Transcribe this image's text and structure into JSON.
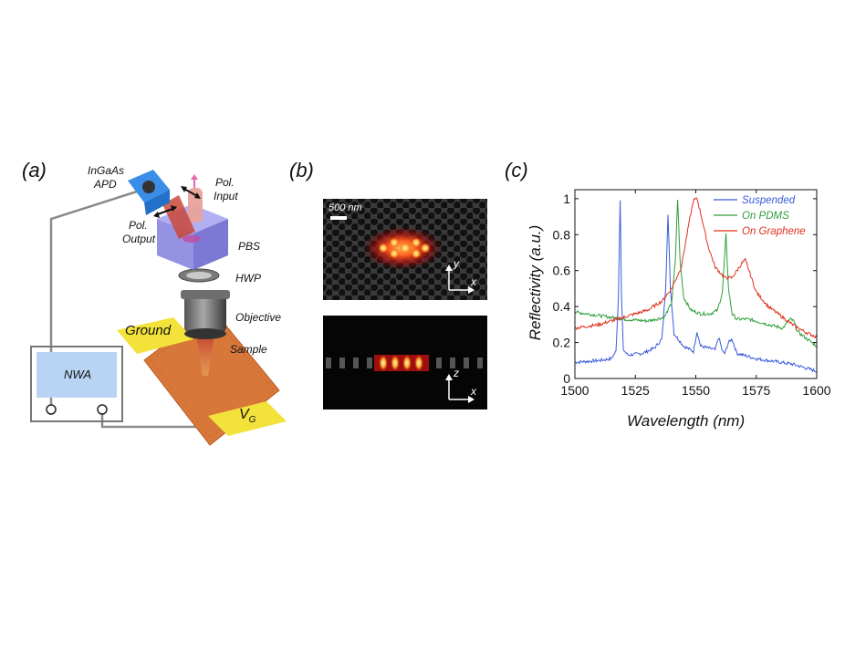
{
  "panels": {
    "a": {
      "letter": "(a)",
      "labels": {
        "ingaas": "InGaAs",
        "apd": "APD",
        "pol_input_1": "Pol.",
        "pol_input_2": "Input",
        "pol_output_1": "Pol.",
        "pol_output_2": "Output",
        "pbs": "PBS",
        "hwp": "HWP",
        "objective": "Objective",
        "sample": "Sample",
        "ground": "Ground",
        "nwa": "NWA",
        "vg": "V",
        "vg_sub": "G"
      }
    },
    "b": {
      "letter": "(b)",
      "scalebar": "500 nm",
      "top_axes": {
        "vertical": "y",
        "horizontal": "x"
      },
      "bottom_axes": {
        "vertical": "z",
        "horizontal": "x"
      }
    },
    "c": {
      "letter": "(c)"
    }
  },
  "chart_data": {
    "type": "line",
    "title": "",
    "xlabel": "Wavelength (nm)",
    "ylabel": "Reflectivity (a.u.)",
    "xlim": [
      1500,
      1600
    ],
    "ylim": [
      0,
      1.05
    ],
    "xticks": [
      1500,
      1525,
      1550,
      1575,
      1600
    ],
    "yticks": [
      0,
      0.2,
      0.4,
      0.6,
      0.8,
      1
    ],
    "ytick_labels": [
      "0",
      "0.2",
      "0.4",
      "0.6",
      "0.8",
      "1"
    ],
    "legend_position": "top-right",
    "series": [
      {
        "name": "Suspended",
        "color": "#3a5bd9",
        "x": [
          1500,
          1510,
          1515,
          1517,
          1518,
          1518.7,
          1519.3,
          1520,
          1522,
          1528,
          1533,
          1536,
          1537.5,
          1538.5,
          1539.5,
          1541,
          1545,
          1549,
          1550.5,
          1552,
          1555,
          1558,
          1559.5,
          1561,
          1562,
          1563.5,
          1565,
          1567,
          1575,
          1590,
          1600
        ],
        "y": [
          0.09,
          0.1,
          0.11,
          0.15,
          0.45,
          1.0,
          0.45,
          0.16,
          0.13,
          0.14,
          0.17,
          0.22,
          0.5,
          0.91,
          0.5,
          0.25,
          0.18,
          0.15,
          0.26,
          0.18,
          0.17,
          0.16,
          0.23,
          0.15,
          0.14,
          0.2,
          0.22,
          0.14,
          0.11,
          0.08,
          0.04
        ]
      },
      {
        "name": "On PDMS",
        "color": "#2e9e3a",
        "x": [
          1500,
          1510,
          1520,
          1530,
          1537,
          1540,
          1541.5,
          1542.5,
          1543.5,
          1545,
          1548,
          1552,
          1556,
          1559,
          1561,
          1562.5,
          1563.5,
          1565,
          1567,
          1572,
          1580,
          1586,
          1589,
          1590.5,
          1592,
          1596,
          1600
        ],
        "y": [
          0.37,
          0.35,
          0.33,
          0.32,
          0.34,
          0.42,
          0.65,
          1.0,
          0.65,
          0.45,
          0.38,
          0.36,
          0.36,
          0.38,
          0.48,
          0.8,
          0.5,
          0.36,
          0.33,
          0.33,
          0.3,
          0.28,
          0.33,
          0.32,
          0.26,
          0.22,
          0.18
        ]
      },
      {
        "name": "On Graphene",
        "color": "#e0301e",
        "x": [
          1500,
          1510,
          1520,
          1530,
          1536,
          1540,
          1544,
          1547,
          1549,
          1550.5,
          1552,
          1555,
          1558,
          1562,
          1565,
          1567,
          1569,
          1570.5,
          1572,
          1575,
          1580,
          1585,
          1590,
          1595,
          1600
        ],
        "y": [
          0.28,
          0.3,
          0.34,
          0.38,
          0.43,
          0.5,
          0.62,
          0.85,
          0.99,
          1.0,
          0.92,
          0.74,
          0.62,
          0.56,
          0.56,
          0.6,
          0.64,
          0.66,
          0.6,
          0.48,
          0.4,
          0.35,
          0.3,
          0.26,
          0.23
        ]
      }
    ]
  }
}
